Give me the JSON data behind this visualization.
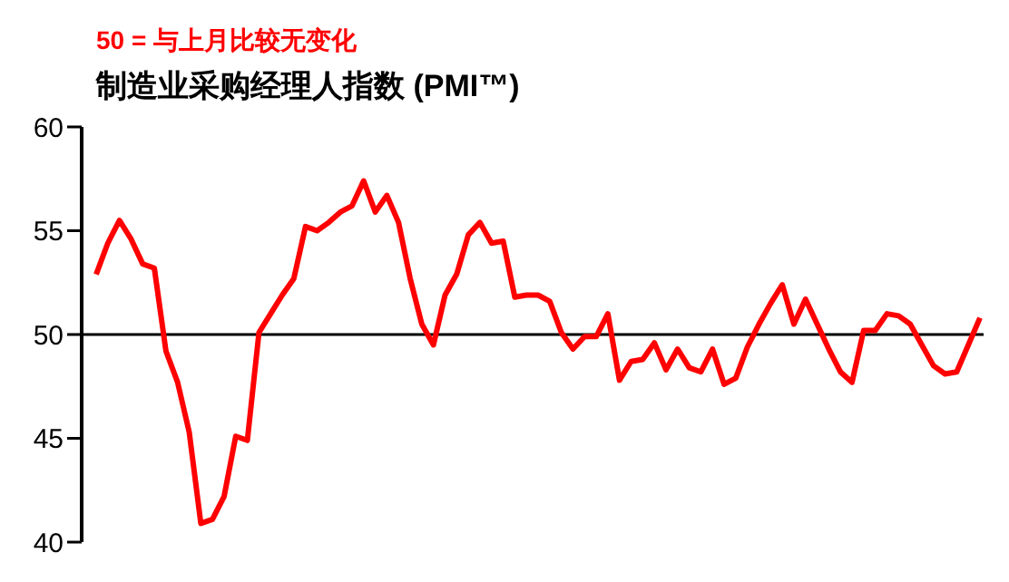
{
  "chart_data": {
    "type": "line",
    "title": "制造业采购经理人指数 (PMI™)",
    "annotations": [
      "50 = 与上月比较无变化"
    ],
    "categories": [
      null,
      null,
      null,
      null,
      null,
      null,
      null,
      null,
      null,
      null,
      null,
      null,
      null,
      null,
      null,
      null,
      null,
      null,
      null,
      null,
      null,
      null,
      null,
      null,
      null,
      null,
      null,
      null,
      null,
      null,
      null,
      null,
      null,
      null,
      null,
      null,
      null,
      null,
      null,
      null,
      null,
      null,
      null,
      null,
      null,
      null,
      null,
      null,
      null,
      null,
      null,
      null,
      null,
      null,
      null,
      null,
      null,
      null,
      null,
      null,
      null,
      null,
      null,
      null,
      null,
      null,
      null,
      null,
      null,
      null,
      null,
      null,
      null,
      null,
      null,
      null,
      null
    ],
    "series": [
      {
        "color": "#ff0000",
        "values": [
          52.9,
          54.4,
          55.5,
          54.6,
          53.4,
          53.2,
          49.2,
          47.7,
          45.3,
          40.9,
          41.1,
          42.2,
          45.1,
          44.9,
          50.1,
          51.0,
          51.9,
          52.7,
          55.2,
          55.0,
          55.4,
          55.9,
          56.2,
          57.4,
          55.9,
          56.7,
          55.4,
          52.7,
          50.5,
          49.5,
          51.9,
          52.9,
          54.8,
          55.4,
          54.4,
          54.5,
          51.8,
          51.9,
          51.9,
          51.6,
          50.1,
          49.3,
          49.9,
          49.9,
          51.0,
          47.8,
          48.7,
          48.8,
          49.6,
          48.3,
          49.3,
          48.4,
          48.2,
          49.3,
          47.6,
          47.9,
          49.4,
          50.5,
          51.5,
          52.4,
          50.5,
          51.7,
          50.5,
          49.3,
          48.2,
          47.7,
          50.2,
          50.2,
          51.0,
          50.9,
          50.5,
          49.5,
          48.5,
          48.1,
          48.2,
          49.5,
          50.8
        ]
      }
    ],
    "ylim": [
      40,
      60
    ],
    "yticks": [
      40,
      45,
      50,
      55,
      60
    ],
    "tick_labels": "y",
    "grid": false,
    "legend": false,
    "marker": "none",
    "line_style": "solid",
    "ref_lines": [
      {
        "axis": "y",
        "value": 50,
        "color": "#000000"
      }
    ]
  }
}
